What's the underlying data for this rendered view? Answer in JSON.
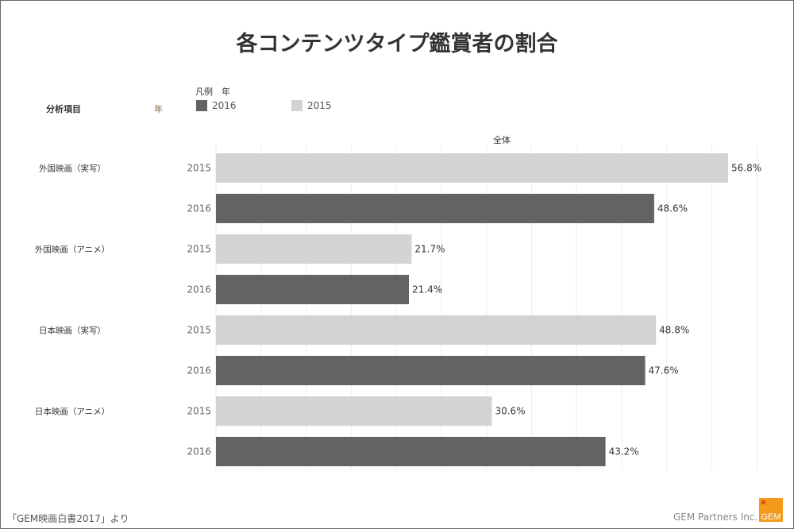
{
  "title": "各コンテンツタイプ鑑賞者の割合",
  "header": {
    "item_label": "分析項目",
    "year_label": "年",
    "legend_title": "凡例　年"
  },
  "footer": {
    "source": "「GEM映画白書2017」より",
    "company": "GEM Partners Inc.",
    "logo_text": "GEM"
  },
  "colors": {
    "2016": "#636363",
    "2015": "#d3d3d3"
  },
  "chart_data": {
    "type": "bar",
    "orientation": "horizontal",
    "title": "各コンテンツタイプ鑑賞者の割合",
    "panel_header": "全体",
    "legend": [
      {
        "name": "2016",
        "color": "#636363"
      },
      {
        "name": "2015",
        "color": "#d3d3d3"
      }
    ],
    "legend_placement": "top",
    "xlim": [
      0,
      60
    ],
    "grid": true,
    "groups": [
      {
        "category": "外国映画（実写）",
        "bars": [
          {
            "year": "2015",
            "value": 56.8,
            "label": "56.8%"
          },
          {
            "year": "2016",
            "value": 48.6,
            "label": "48.6%"
          }
        ]
      },
      {
        "category": "外国映画（アニメ）",
        "bars": [
          {
            "year": "2015",
            "value": 21.7,
            "label": "21.7%"
          },
          {
            "year": "2016",
            "value": 21.4,
            "label": "21.4%"
          }
        ]
      },
      {
        "category": "日本映画（実写）",
        "bars": [
          {
            "year": "2015",
            "value": 48.8,
            "label": "48.8%"
          },
          {
            "year": "2016",
            "value": 47.6,
            "label": "47.6%"
          }
        ]
      },
      {
        "category": "日本映画（アニメ）",
        "bars": [
          {
            "year": "2015",
            "value": 30.6,
            "label": "30.6%"
          },
          {
            "year": "2016",
            "value": 43.2,
            "label": "43.2%"
          }
        ]
      }
    ]
  }
}
